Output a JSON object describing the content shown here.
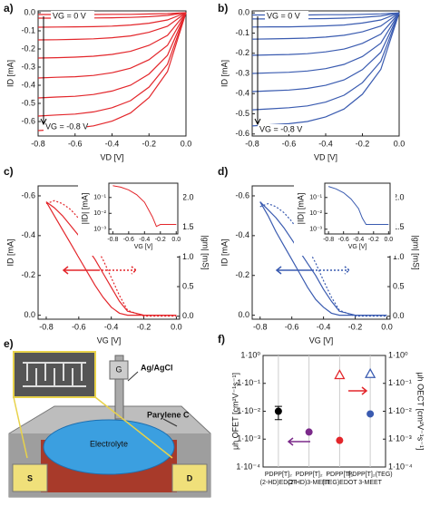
{
  "chart_data": [
    {
      "type": "line",
      "panel_label": "a)",
      "xlabel": "VD [V]",
      "ylabel": "ID [mA]",
      "x": [
        -0.8,
        -0.7,
        -0.6,
        -0.5,
        -0.4,
        -0.3,
        -0.2,
        -0.1,
        0
      ],
      "xlim": [
        -0.8,
        0
      ],
      "ylim": [
        -0.68,
        0.01
      ],
      "xticks": [
        -0.8,
        -0.6,
        -0.4,
        -0.2,
        {
          "value": 0,
          "label": "0.0"
        }
      ],
      "yticks": [
        -0.6,
        -0.5,
        -0.4,
        -0.3,
        -0.2,
        -0.1,
        {
          "value": 0,
          "label": "0.0"
        }
      ],
      "annotations": [
        "VG = 0 V",
        "VG = -0.8 V"
      ],
      "series": [
        {
          "color": "#e3262b",
          "values": [
            -0.01,
            -0.01,
            -0.01,
            -0.01,
            -0.009,
            -0.009,
            -0.007,
            -0.005,
            0
          ]
        },
        {
          "color": "#e3262b",
          "values": [
            -0.03,
            -0.03,
            -0.029,
            -0.029,
            -0.028,
            -0.026,
            -0.022,
            -0.015,
            0
          ]
        },
        {
          "color": "#e3262b",
          "values": [
            -0.08,
            -0.079,
            -0.078,
            -0.077,
            -0.074,
            -0.068,
            -0.058,
            -0.04,
            0
          ]
        },
        {
          "color": "#e3262b",
          "values": [
            -0.15,
            -0.149,
            -0.147,
            -0.144,
            -0.138,
            -0.128,
            -0.108,
            -0.075,
            0
          ]
        },
        {
          "color": "#e3262b",
          "values": [
            -0.25,
            -0.248,
            -0.245,
            -0.24,
            -0.23,
            -0.213,
            -0.18,
            -0.125,
            0
          ]
        },
        {
          "color": "#e3262b",
          "values": [
            -0.36,
            -0.356,
            -0.353,
            -0.346,
            -0.331,
            -0.306,
            -0.259,
            -0.18,
            0
          ]
        },
        {
          "color": "#e3262b",
          "values": [
            -0.47,
            -0.465,
            -0.461,
            -0.451,
            -0.432,
            -0.4,
            -0.338,
            -0.235,
            0
          ]
        },
        {
          "color": "#e3262b",
          "values": [
            -0.57,
            -0.564,
            -0.559,
            -0.547,
            -0.524,
            -0.485,
            -0.41,
            -0.285,
            0
          ]
        },
        {
          "color": "#e3262b",
          "values": [
            -0.65,
            -0.644,
            -0.637,
            -0.624,
            -0.598,
            -0.553,
            -0.468,
            -0.325,
            0
          ]
        }
      ]
    },
    {
      "type": "line",
      "panel_label": "b)",
      "xlabel": "VD [V]",
      "ylabel": "ID [mA]",
      "x": [
        -0.8,
        -0.7,
        -0.6,
        -0.5,
        -0.4,
        -0.3,
        -0.2,
        -0.1,
        0
      ],
      "xlim": [
        -0.8,
        0
      ],
      "ylim": [
        -0.61,
        0.01
      ],
      "xticks": [
        -0.8,
        -0.6,
        -0.4,
        -0.2,
        {
          "value": 0,
          "label": "0.0"
        }
      ],
      "yticks": [
        -0.6,
        -0.5,
        -0.4,
        -0.3,
        -0.2,
        -0.1,
        {
          "value": 0,
          "label": "0.0"
        }
      ],
      "annotations": [
        "VG = 0 V",
        "VG = -0.8 V"
      ],
      "series": [
        {
          "color": "#3a5bb0",
          "values": [
            -0.01,
            -0.01,
            -0.01,
            -0.01,
            -0.009,
            -0.009,
            -0.007,
            -0.005,
            0
          ]
        },
        {
          "color": "#3a5bb0",
          "values": [
            -0.03,
            -0.03,
            -0.029,
            -0.029,
            -0.028,
            -0.026,
            -0.022,
            -0.015,
            0
          ]
        },
        {
          "color": "#3a5bb0",
          "values": [
            -0.07,
            -0.069,
            -0.069,
            -0.067,
            -0.064,
            -0.06,
            -0.05,
            -0.035,
            0
          ]
        },
        {
          "color": "#3a5bb0",
          "values": [
            -0.13,
            -0.129,
            -0.127,
            -0.125,
            -0.12,
            -0.111,
            -0.094,
            -0.065,
            0
          ]
        },
        {
          "color": "#3a5bb0",
          "values": [
            -0.21,
            -0.208,
            -0.206,
            -0.202,
            -0.193,
            -0.179,
            -0.151,
            -0.105,
            0
          ]
        },
        {
          "color": "#3a5bb0",
          "values": [
            -0.3,
            -0.297,
            -0.294,
            -0.288,
            -0.276,
            -0.255,
            -0.216,
            -0.15,
            0
          ]
        },
        {
          "color": "#3a5bb0",
          "values": [
            -0.39,
            -0.386,
            -0.382,
            -0.374,
            -0.359,
            -0.332,
            -0.281,
            -0.195,
            0
          ]
        },
        {
          "color": "#3a5bb0",
          "values": [
            -0.48,
            -0.475,
            -0.47,
            -0.461,
            -0.442,
            -0.408,
            -0.346,
            -0.24,
            0
          ]
        },
        {
          "color": "#3a5bb0",
          "values": [
            -0.56,
            -0.554,
            -0.549,
            -0.538,
            -0.515,
            -0.476,
            -0.403,
            -0.28,
            0
          ]
        }
      ]
    },
    {
      "type": "line",
      "panel_label": "c)",
      "xlabel": "VG [V]",
      "ylabel": "ID [mA]",
      "y2label": "|gm| [mS]",
      "x": [
        -0.8,
        -0.75,
        -0.7,
        -0.65,
        -0.6,
        -0.55,
        -0.5,
        -0.45,
        -0.4,
        -0.35,
        -0.3,
        -0.2,
        -0.1,
        0
      ],
      "xlim": [
        -0.85,
        0.02
      ],
      "ylim": [
        0.02,
        -0.65
      ],
      "y2lim": [
        -0.05,
        2.2
      ],
      "xticks": [
        -0.8,
        -0.6,
        -0.4,
        -0.2,
        {
          "value": 0,
          "label": "0.0"
        }
      ],
      "yticks": [
        -0.6,
        -0.4,
        -0.2,
        {
          "value": 0,
          "label": "0.0"
        }
      ],
      "y2ticks": [
        {
          "value": 0,
          "label": "0.0"
        },
        0.5,
        {
          "value": 1,
          "label": "1.0"
        },
        1.5,
        {
          "value": 2,
          "label": "2.0"
        }
      ],
      "series": [
        {
          "color": "#e3262b",
          "values": [
            -0.57,
            -0.54,
            -0.5,
            -0.45,
            -0.4,
            -0.34,
            -0.28,
            -0.21,
            -0.14,
            -0.07,
            -0.02,
            0,
            0,
            0
          ]
        },
        {
          "color": "#e3262b",
          "values": [
            -0.57,
            -0.5,
            -0.43,
            -0.36,
            -0.29,
            -0.22,
            -0.15,
            -0.09,
            -0.04,
            -0.01,
            0,
            0,
            0,
            0
          ]
        },
        {
          "color": "#e3262b",
          "style": "dotted",
          "axis": "y2",
          "values": [
            1.9,
            1.95,
            1.9,
            1.8,
            1.65,
            1.45,
            1.2,
            0.95,
            0.65,
            0.35,
            0.1,
            0,
            0,
            0
          ]
        }
      ]
    },
    {
      "type": "line",
      "xlabel": "VG [V]",
      "ylabel": "|ID| [mA]",
      "log_y": true,
      "x": [
        -0.8,
        -0.7,
        -0.6,
        -0.5,
        -0.4,
        -0.3,
        -0.25,
        -0.2,
        -0.1,
        0
      ],
      "xlim": [
        -0.85,
        0.02
      ],
      "ylim": [
        0.0005,
        0.8
      ],
      "xticks": [
        -0.8,
        -0.6,
        -0.4,
        -0.2,
        {
          "value": 0,
          "label": "0.0"
        }
      ],
      "yticks": [
        {
          "value": 0.1,
          "label": "10⁻¹"
        },
        {
          "value": 0.01,
          "label": "10⁻²"
        },
        {
          "value": 0.001,
          "label": "10⁻³"
        }
      ],
      "series": [
        {
          "color": "#e3262b",
          "values": [
            0.55,
            0.45,
            0.3,
            0.15,
            0.05,
            0.006,
            0.0015,
            0.002,
            0.002,
            0.002
          ]
        }
      ]
    },
    {
      "type": "line",
      "panel_label": "d)",
      "xlabel": "VG [V]",
      "ylabel": "ID [mA]",
      "y2label": "|gm| [mS]",
      "x": [
        -0.8,
        -0.75,
        -0.7,
        -0.65,
        -0.6,
        -0.55,
        -0.5,
        -0.45,
        -0.4,
        -0.35,
        -0.3,
        -0.2,
        -0.1,
        0
      ],
      "xlim": [
        -0.85,
        0.02
      ],
      "ylim": [
        0.02,
        -0.65
      ],
      "y2lim": [
        -0.05,
        2.2
      ],
      "xticks": [
        -0.8,
        -0.6,
        -0.4,
        -0.2,
        {
          "value": 0,
          "label": "0.0"
        }
      ],
      "yticks": [
        -0.6,
        -0.4,
        -0.2,
        {
          "value": 0,
          "label": "0.0"
        }
      ],
      "y2ticks": [
        {
          "value": 0,
          "label": "0.0"
        },
        0.5,
        {
          "value": 1,
          "label": "1.0"
        },
        1.5,
        {
          "value": 2,
          "label": "2.0"
        }
      ],
      "series": [
        {
          "color": "#3a5bb0",
          "values": [
            -0.57,
            -0.53,
            -0.49,
            -0.44,
            -0.38,
            -0.32,
            -0.26,
            -0.2,
            -0.13,
            -0.07,
            -0.02,
            0,
            0,
            0
          ]
        },
        {
          "color": "#3a5bb0",
          "values": [
            -0.57,
            -0.5,
            -0.42,
            -0.35,
            -0.28,
            -0.21,
            -0.14,
            -0.08,
            -0.04,
            -0.01,
            0,
            0,
            0,
            0
          ]
        },
        {
          "color": "#3a5bb0",
          "style": "dotted",
          "axis": "y2",
          "values": [
            1.85,
            1.9,
            1.85,
            1.75,
            1.6,
            1.4,
            1.15,
            0.9,
            0.6,
            0.32,
            0.1,
            0,
            0,
            0
          ]
        }
      ]
    },
    {
      "type": "line",
      "xlabel": "VG [V]",
      "ylabel": "|ID| [mA]",
      "log_y": true,
      "x": [
        -0.8,
        -0.7,
        -0.6,
        -0.5,
        -0.4,
        -0.35,
        -0.3,
        -0.2,
        -0.1,
        0
      ],
      "xlim": [
        -0.85,
        0.02
      ],
      "ylim": [
        0.0005,
        0.8
      ],
      "xticks": [
        -0.8,
        -0.6,
        -0.4,
        -0.2,
        {
          "value": 0,
          "label": "0.0"
        }
      ],
      "yticks": [
        {
          "value": 0.1,
          "label": "10⁻¹"
        },
        {
          "value": 0.01,
          "label": "10⁻²"
        },
        {
          "value": 0.001,
          "label": "10⁻³"
        }
      ],
      "series": [
        {
          "color": "#3a5bb0",
          "values": [
            0.5,
            0.35,
            0.2,
            0.08,
            0.02,
            0.005,
            0.002,
            0.002,
            0.002,
            0.002
          ]
        }
      ]
    },
    {
      "type": "scatter",
      "panel_label": "f)",
      "ylabel": "μh OFET [cm²V⁻¹s⁻¹]",
      "y2label": "μh OECT [cm²V⁻¹s⁻¹]",
      "log_y": true,
      "grid": true,
      "categories": [
        [
          "PDPP[T]₂",
          "(2-HD)EDOT"
        ],
        [
          "PDPP[T]₂",
          "(2-HD)3-MEET"
        ],
        [
          "PDPP[T]₂",
          "(TEG)EDOT"
        ],
        [
          "PDPP[T]₂(TEG)",
          "3-MEET"
        ]
      ],
      "ylim": [
        0.0001,
        1
      ],
      "y2lim": [
        0.0001,
        1
      ],
      "yticks": [
        {
          "value": 1,
          "label": "1·10⁰"
        },
        {
          "value": 0.1,
          "label": "1·10⁻¹"
        },
        {
          "value": 0.01,
          "label": "1·10⁻²"
        },
        {
          "value": 0.001,
          "label": "1·10⁻³"
        },
        {
          "value": 0.0001,
          "label": "1·10⁻⁴"
        }
      ],
      "y2ticks": [
        {
          "value": 1,
          "label": "1·10⁰"
        },
        {
          "value": 0.1,
          "label": "1·10⁻¹"
        },
        {
          "value": 0.01,
          "label": "1·10⁻²"
        },
        {
          "value": 0.001,
          "label": "1·10⁻³"
        },
        {
          "value": 0.0001,
          "label": "1·10⁻⁴"
        }
      ],
      "colors": [
        "#000000",
        "#7b2a8a",
        "#e3262b",
        "#3a5bb0"
      ],
      "series": [
        {
          "marker": "circle",
          "filled": true,
          "values": [
            0.01,
            0.0018,
            0.0009,
            0.008
          ],
          "errors": [
            0.005,
            null,
            null,
            null
          ]
        },
        {
          "marker": "triangle",
          "filled": false,
          "axis": "y2",
          "values": [
            null,
            null,
            0.2,
            0.22
          ]
        }
      ]
    }
  ],
  "diagram": {
    "panel_label": "e)",
    "gate": "G",
    "reference": "Ag/AgCl",
    "parylene": "Parylene C",
    "electrolyte": "Electrolyte",
    "source": "S",
    "drain": "D"
  }
}
